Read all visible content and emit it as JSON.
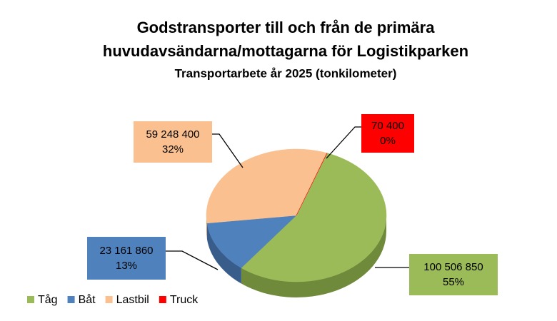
{
  "chart_data": {
    "type": "pie3d",
    "title_lines": [
      "Godstransporter till och från de primära",
      "huvudavsändarna/mottagarna för Logistikparken"
    ],
    "subtitle": "Transportarbete år 2025 (tonkilometer)",
    "categories": [
      "Tåg",
      "Båt",
      "Lastbil",
      "Truck"
    ],
    "values": [
      100506850,
      23161860,
      59248400,
      70400
    ],
    "value_labels": [
      "100 506 850",
      "23 161 860",
      "59 248 400",
      "70 400"
    ],
    "percent_labels": [
      "55%",
      "13%",
      "32%",
      "0%"
    ],
    "colors": [
      "#9bbb59",
      "#4f81bd",
      "#fac090",
      "#ff0000"
    ],
    "side_colors": [
      "#6f8a3a",
      "#385d8a",
      "#c7936a",
      "#b00000"
    ],
    "legend": "bottom-left"
  }
}
